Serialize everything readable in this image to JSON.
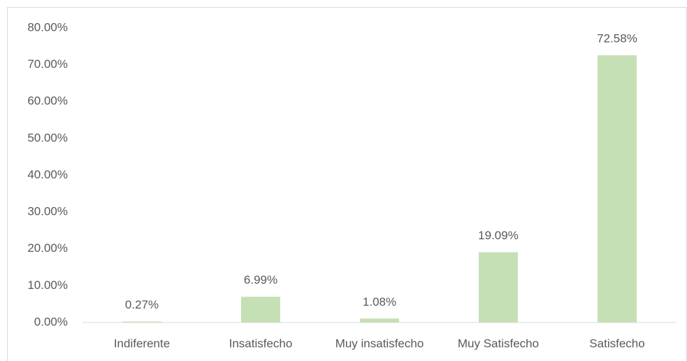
{
  "chart_data": {
    "type": "bar",
    "categories": [
      "Indiferente",
      "Insatisfecho",
      "Muy insatisfecho",
      "Muy Satisfecho",
      "Satisfecho"
    ],
    "values": [
      0.27,
      6.99,
      1.08,
      19.09,
      72.58
    ],
    "value_labels": [
      "0.27%",
      "6.99%",
      "1.08%",
      "19.09%",
      "72.58%"
    ],
    "color": "#c5e0b4",
    "ylim": [
      0,
      80
    ],
    "yticks": [
      {
        "value": 0,
        "label": "0.00%"
      },
      {
        "value": 10,
        "label": "10.00%"
      },
      {
        "value": 20,
        "label": "20.00%"
      },
      {
        "value": 30,
        "label": "30.00%"
      },
      {
        "value": 40,
        "label": "40.00%"
      },
      {
        "value": 50,
        "label": "50.00%"
      },
      {
        "value": 60,
        "label": "60.00%"
      },
      {
        "value": 70,
        "label": "70.00%"
      },
      {
        "value": 80,
        "label": "80.00%"
      }
    ],
    "grid": false
  }
}
